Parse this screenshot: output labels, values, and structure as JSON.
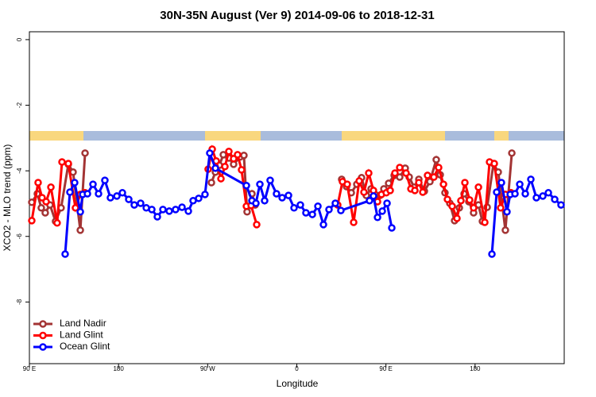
{
  "chart_data": {
    "type": "line",
    "title": "30N-35N August (Ver 9)   2014-09-06 to 2018-12-31",
    "x_label": "Longitude",
    "y_label": "XCO2 - MLO trend (ppm)",
    "xlim": [
      90,
      630
    ],
    "ylim": [
      -9.88,
      0.24
    ],
    "xticks": [
      {
        "value": 90,
        "label": "90 E"
      },
      180,
      {
        "value": 270,
        "label": "90 W"
      },
      {
        "value": 360,
        "label": "0"
      },
      {
        "value": 450,
        "label": "90 E"
      },
      {
        "value": 540,
        "label": "180"
      }
    ],
    "yticks": [
      0,
      -2,
      -4,
      -6,
      -8
    ],
    "legend": "bottom-left",
    "series": [
      {
        "name": "Land Nadir",
        "color": "#a33434",
        "x": [
          92.4,
          98.0,
          102.0,
          106.0,
          110.8,
          116.4,
          122.0,
          129.3,
          134.1,
          141.4,
          146.2,
          null,
          273.8,
          277.8,
          281.8,
          285.8,
          291.4,
          296.2,
          302.6,
          306.6,
          309.8,
          314.7,
          317.9,
          null,
          405.3,
          410.2,
          415.0,
          420.6,
          425.4,
          430.2,
          435.0,
          439.0,
          443.9,
          447.9,
          452.7,
          458.3,
          463.9,
          469.5,
          473.5,
          478.4,
          483.2,
          488.8,
          494.4,
          500.8,
          504.8,
          509.6,
          514.5,
          519.3,
          524.1,
          528.9,
          533.7,
          538.5,
          543.4,
          547.4,
          552.2,
          558.6,
          563.4,
          570.6,
          577.1
        ],
        "values": [
          -4.96,
          -4.7,
          -5.13,
          -5.28,
          -5.04,
          -5.54,
          -5.13,
          -3.8,
          -4.04,
          -5.81,
          -3.46,
          null,
          -4.36,
          -4.04,
          -3.83,
          -3.51,
          -3.61,
          -3.8,
          -3.58,
          -3.53,
          -5.25,
          -4.7,
          -5.04,
          null,
          -4.26,
          -4.48,
          -4.67,
          -4.41,
          -4.21,
          -4.75,
          -4.55,
          -4.72,
          -4.75,
          -4.55,
          -4.38,
          -4.14,
          -4.19,
          -3.92,
          -4.19,
          -4.5,
          -4.26,
          -4.62,
          -4.33,
          -3.66,
          -4.12,
          -4.67,
          -4.99,
          -5.52,
          -5.13,
          -4.7,
          -4.94,
          -5.28,
          -5.04,
          -5.54,
          -5.11,
          -3.78,
          -4.04,
          -5.81,
          -3.46
        ]
      },
      {
        "name": "Land Glint",
        "color": "#ff0000",
        "x": [
          92.4,
          98.8,
          102.8,
          106.9,
          111.7,
          118.0,
          122.9,
          129.3,
          136.5,
          141.4,
          146.2,
          null,
          270.5,
          274.6,
          278.6,
          283.4,
          287.4,
          291.4,
          296.2,
          300.2,
          304.2,
          309.1,
          313.9,
          319.5,
          null,
          401.3,
          406.1,
          410.9,
          417.4,
          423.0,
          427.8,
          432.6,
          437.4,
          441.5,
          445.5,
          450.3,
          454.3,
          459.1,
          463.9,
          470.3,
          475.2,
          479.2,
          483.2,
          487.2,
          492.0,
          498.4,
          503.2,
          508.1,
          512.1,
          516.9,
          521.7,
          525.7,
          529.7,
          534.5,
          538.5,
          543.4,
          549.8,
          554.6,
          559.4,
          565.8,
          570.6,
          576.3
        ],
        "values": [
          -5.52,
          -4.36,
          -4.82,
          -4.94,
          -4.5,
          -5.59,
          -3.73,
          -3.78,
          -5.13,
          -4.72,
          -4.67,
          null,
          -3.95,
          -3.34,
          -3.7,
          -4.24,
          -3.87,
          -3.41,
          -3.63,
          -3.51,
          -3.97,
          -5.08,
          -5.06,
          -5.64,
          null,
          -5.04,
          -4.33,
          -4.41,
          -5.57,
          -4.31,
          -4.65,
          -4.07,
          -4.6,
          -4.94,
          -4.72,
          -4.67,
          -4.6,
          -4.07,
          -3.9,
          -4.07,
          -4.55,
          -4.6,
          -4.36,
          -4.65,
          -4.14,
          -4.19,
          -3.9,
          -4.41,
          -4.87,
          -5.08,
          -5.45,
          -4.91,
          -4.36,
          -4.89,
          -5.13,
          -4.5,
          -5.57,
          -3.73,
          -3.78,
          -5.13,
          -4.72,
          -4.67
        ]
      },
      {
        "name": "Ocean Glint",
        "color": "#0000ff",
        "x": [
          126.1,
          130.9,
          135.7,
          141.4,
          143.8,
          148.6,
          154.2,
          159.8,
          166.2,
          171.8,
          178.3,
          183.9,
          190.3,
          195.9,
          202.3,
          208.0,
          213.6,
          219.2,
          224.8,
          231.2,
          237.6,
          244.1,
          250.5,
          255.3,
          260.9,
          267.3,
          272.1,
          277.8,
          309.1,
          314.7,
          318.7,
          322.7,
          327.5,
          333.1,
          339.5,
          345.2,
          351.6,
          357.2,
          363.6,
          369.2,
          375.7,
          381.3,
          386.9,
          392.5,
          398.9,
          404.5,
          433.4,
          437.4,
          441.5,
          446.3,
          451.1,
          455.9,
          null,
          557.0,
          561.8,
          566.6,
          572.2,
          575.5,
          580.3,
          585.1,
          590.7,
          596.3,
          601.9,
          608.4,
          614.0,
          620.4,
          626.8
        ],
        "values": [
          -6.54,
          -4.65,
          -4.36,
          -5.25,
          -4.72,
          -4.7,
          -4.41,
          -4.7,
          -4.29,
          -4.82,
          -4.77,
          -4.67,
          -4.87,
          -5.04,
          -4.99,
          -5.13,
          -5.18,
          -5.4,
          -5.18,
          -5.23,
          -5.18,
          -5.11,
          -5.23,
          -4.91,
          -4.84,
          -4.72,
          -3.46,
          -3.92,
          -4.45,
          -4.91,
          -4.99,
          -4.41,
          -4.91,
          -4.29,
          -4.7,
          -4.82,
          -4.75,
          -5.13,
          -5.04,
          -5.28,
          -5.33,
          -5.08,
          -5.64,
          -5.18,
          -4.99,
          -5.21,
          -4.91,
          -4.77,
          -5.42,
          -5.23,
          -4.99,
          -5.74,
          null,
          -6.54,
          -4.65,
          -4.36,
          -5.25,
          -4.72,
          -4.7,
          -4.41,
          -4.7,
          -4.26,
          -4.82,
          -4.77,
          -4.67,
          -4.87,
          -5.04
        ]
      }
    ]
  }
}
